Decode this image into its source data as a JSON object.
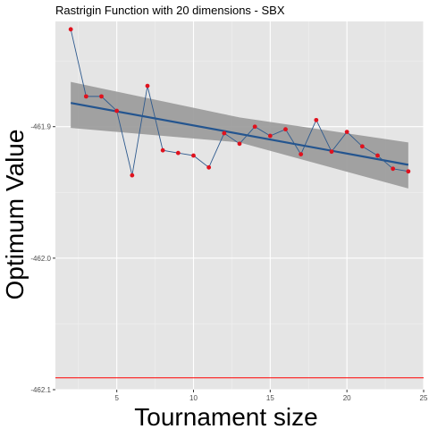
{
  "chart_data": {
    "type": "line",
    "title": "Rastrigin Function with 20 dimensions -  SBX",
    "xlabel": "Tournament size",
    "ylabel": "Optimum Value",
    "xlim": [
      1,
      25
    ],
    "ylim": [
      -462.1,
      -461.82
    ],
    "x_ticks": [
      5,
      10,
      15,
      20,
      25
    ],
    "x_tick_labels": [
      "5",
      "10",
      "15",
      "20",
      "25"
    ],
    "y_ticks": [
      -461.9,
      -462.0,
      -462.1
    ],
    "y_tick_labels": [
      "-461.9",
      "-462.0",
      "-462.1"
    ],
    "grid": true,
    "x": [
      2,
      3,
      4,
      5,
      6,
      7,
      8,
      9,
      10,
      11,
      12,
      13,
      14,
      15,
      16,
      17,
      18,
      19,
      20,
      21,
      22,
      23,
      24
    ],
    "y": [
      -461.826,
      -461.877,
      -461.877,
      -461.888,
      -461.937,
      -461.869,
      -461.918,
      -461.92,
      -461.922,
      -461.931,
      -461.905,
      -461.913,
      -461.9,
      -461.907,
      -461.902,
      -461.921,
      -461.895,
      -461.919,
      -461.904,
      -461.915,
      -461.922,
      -461.932,
      -461.934
    ],
    "trend": {
      "x": [
        2,
        24
      ],
      "y": [
        -461.882,
        -461.929
      ]
    },
    "confidence_band": {
      "x": [
        2,
        13,
        24
      ],
      "upper": [
        -461.866,
        -461.893,
        -461.912
      ],
      "lower": [
        -461.901,
        -461.912,
        -461.947
      ]
    },
    "reference_line": {
      "y": -462.091
    },
    "colors": {
      "panel": "#e5e5e5",
      "grid_major": "#ffffff",
      "grid_minor": "#f0f0f0",
      "points": "#e0121e",
      "data_line": "#2e5a8e",
      "trend_line": "#24558f",
      "band": "#999999",
      "reference": "#ff0000"
    }
  }
}
